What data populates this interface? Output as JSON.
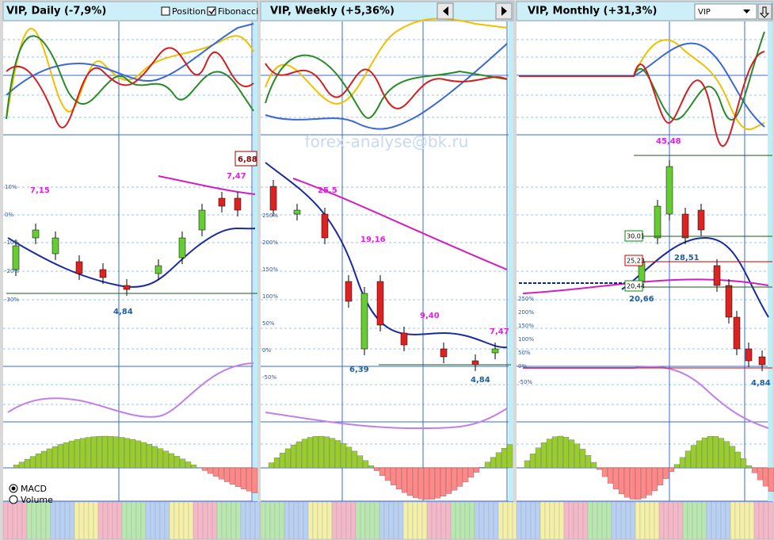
{
  "watermark": "forex-analyse@bk.ru",
  "panels": [
    {
      "title": "VIP, Daily (-7,9%)",
      "checkboxes": [
        "Position",
        "Fibonacci"
      ],
      "price_labels": [
        "7,15",
        "4,84",
        "7,47"
      ],
      "boxed_label": "6,88",
      "axis_labels": [
        "10%",
        "0%",
        "-10%",
        "-20%",
        "-30%"
      ],
      "radios": [
        "MACD",
        "Volume"
      ]
    },
    {
      "title": "VIP, Weekly (+5,36%)",
      "price_labels": [
        "25,5",
        "19,16",
        "6,39",
        "9,40",
        "7,47",
        "4,84"
      ],
      "axis_labels": [
        "250%",
        "200%",
        "150%",
        "100%",
        "50%",
        "0%",
        "-50%"
      ]
    },
    {
      "title": "VIP, Monthly (+31,3%)",
      "dropdown": "VIP",
      "price_labels": [
        "45,48",
        "28,51",
        "20,66",
        "4,84"
      ],
      "level_labels": [
        "30,01",
        "25,23",
        "20,44"
      ],
      "axis_labels": [
        "250%",
        "200%",
        "150%",
        "100%",
        "50%",
        "0%",
        "-50%"
      ]
    }
  ]
}
